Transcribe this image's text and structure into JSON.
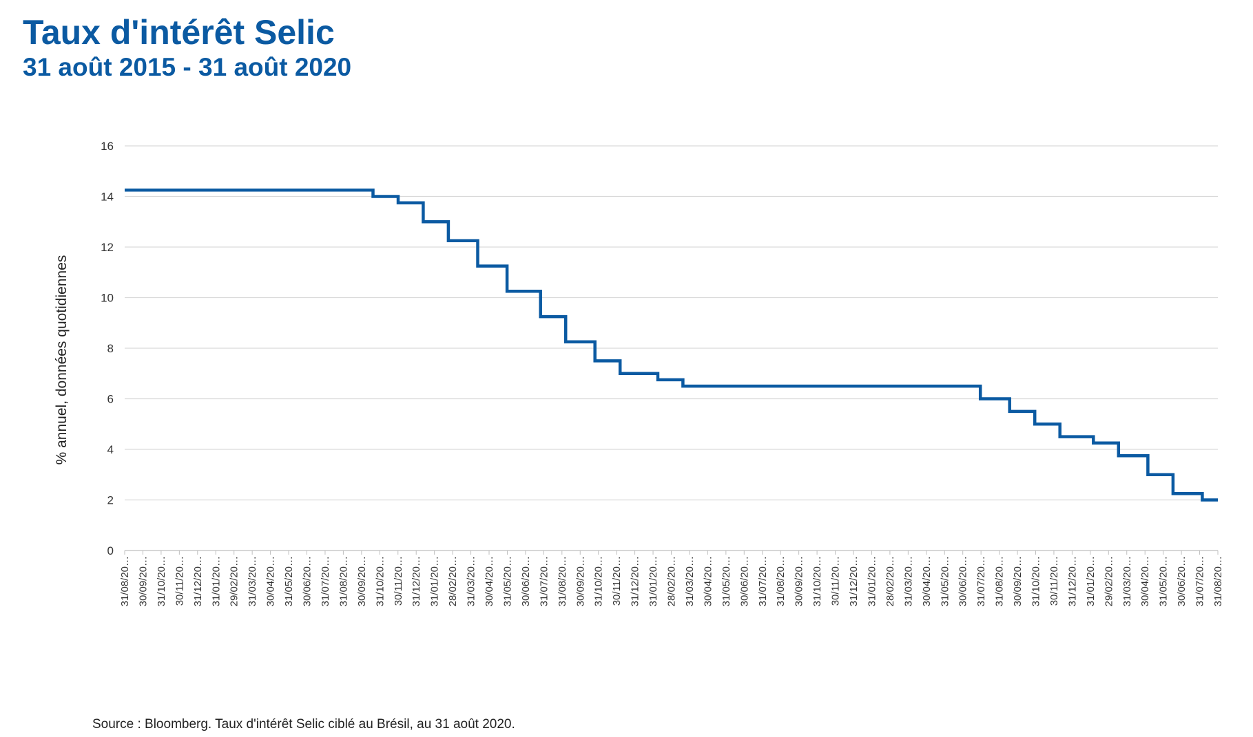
{
  "header": {
    "title": "Taux d'intérêt Selic",
    "subtitle": "31 août 2015 - 31 août 2020"
  },
  "footer": {
    "source": "Source : Bloomberg. Taux d'intérêt Selic ciblé au Brésil, au 31 août 2020."
  },
  "colors": {
    "line": "#0b5aa2",
    "title": "#0b5aa2",
    "grid": "#d9d9d9"
  },
  "chart_data": {
    "type": "line",
    "step": true,
    "title": "Taux d'intérêt Selic",
    "subtitle": "31 août 2015 - 31 août 2020",
    "xlabel": "",
    "ylabel": "% annuel, données quotidiennes",
    "ylim": [
      0,
      16
    ],
    "yticks": [
      0,
      2,
      4,
      6,
      8,
      10,
      12,
      14,
      16
    ],
    "grid": true,
    "legend": "none",
    "x_tick_labels": [
      "31/08/20…",
      "30/09/20…",
      "31/10/20…",
      "30/11/20…",
      "31/12/20…",
      "31/01/20…",
      "29/02/20…",
      "31/03/20…",
      "30/04/20…",
      "31/05/20…",
      "30/06/20…",
      "31/07/20…",
      "31/08/20…",
      "30/09/20…",
      "31/10/20…",
      "30/11/20…",
      "31/12/20…",
      "31/01/20…",
      "28/02/20…",
      "31/03/20…",
      "30/04/20…",
      "31/05/20…",
      "30/06/20…",
      "31/07/20…",
      "31/08/20…",
      "30/09/20…",
      "31/10/20…",
      "30/11/20…",
      "31/12/20…",
      "31/01/20…",
      "28/02/20…",
      "31/03/20…",
      "30/04/20…",
      "31/05/20…",
      "30/06/20…",
      "31/07/20…",
      "31/08/20…",
      "30/09/20…",
      "31/10/20…",
      "30/11/20…",
      "31/12/20…",
      "31/01/20…",
      "28/02/20…",
      "31/03/20…",
      "30/04/20…",
      "31/05/20…",
      "30/06/20…",
      "31/07/20…",
      "31/08/20…",
      "30/09/20…",
      "31/10/20…",
      "30/11/20…",
      "31/12/20…",
      "31/01/20…",
      "29/02/20…",
      "31/03/20…",
      "30/04/20…",
      "31/05/20…",
      "30/06/20…",
      "31/07/20…",
      "31/08/20…"
    ],
    "series": [
      {
        "x": [
          "2015-08-31",
          "2016-10-19",
          "2016-11-30",
          "2017-01-11",
          "2017-02-22",
          "2017-04-12",
          "2017-05-31",
          "2017-07-26",
          "2017-09-06",
          "2017-10-25",
          "2017-12-06",
          "2018-02-07",
          "2018-03-21",
          "2019-07-31",
          "2019-09-18",
          "2019-10-30",
          "2019-12-11",
          "2020-02-05",
          "2020-03-18",
          "2020-05-06",
          "2020-06-17",
          "2020-08-05",
          "2020-08-31"
        ],
        "y": [
          14.25,
          14.0,
          13.75,
          13.0,
          12.25,
          11.25,
          10.25,
          9.25,
          8.25,
          7.5,
          7.0,
          6.75,
          6.5,
          6.0,
          5.5,
          5.0,
          4.5,
          4.25,
          3.75,
          3.0,
          2.25,
          2.0,
          2.0
        ]
      }
    ]
  }
}
